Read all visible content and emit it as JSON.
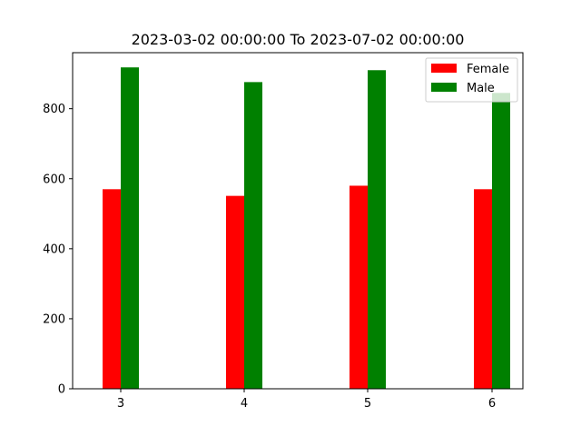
{
  "chart_data": {
    "type": "bar",
    "title": "2023-03-02 00:00:00 To 2023-07-02 00:00:00",
    "xlabel": "",
    "ylabel": "",
    "categories": [
      "3",
      "4",
      "5",
      "6"
    ],
    "series": [
      {
        "name": "Female",
        "color": "#ff0000",
        "values": [
          570,
          551,
          580,
          570
        ]
      },
      {
        "name": "Male",
        "color": "#008000",
        "values": [
          918,
          876,
          910,
          845
        ]
      }
    ],
    "ylim": [
      0,
      960
    ],
    "yticks": [
      "0",
      "200",
      "400",
      "600",
      "800"
    ],
    "legend": "top-right",
    "grid": false
  }
}
